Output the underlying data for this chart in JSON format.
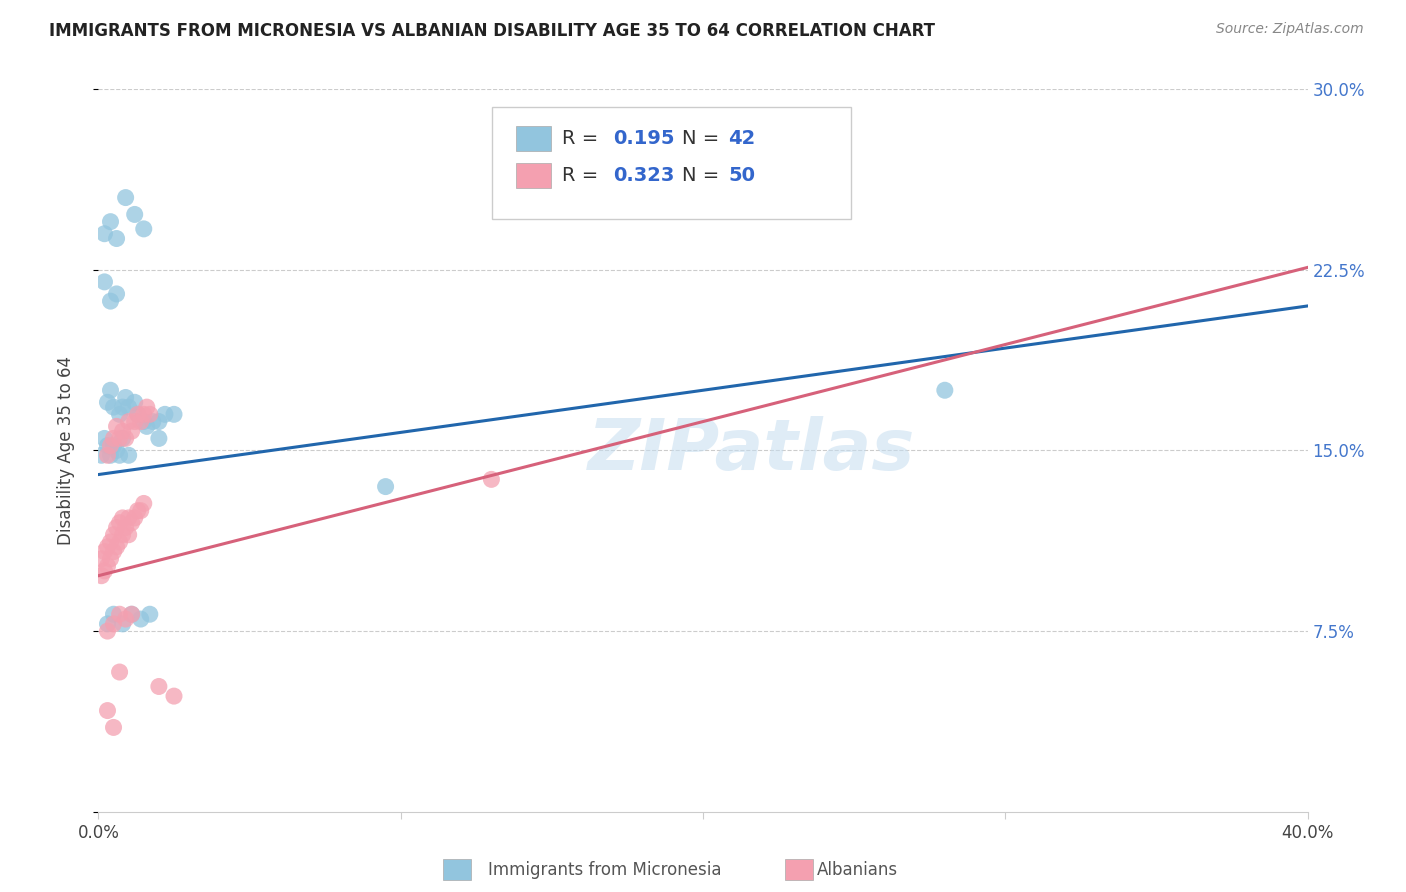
{
  "title": "IMMIGRANTS FROM MICRONESIA VS ALBANIAN DISABILITY AGE 35 TO 64 CORRELATION CHART",
  "source": "Source: ZipAtlas.com",
  "ylabel": "Disability Age 35 to 64",
  "xlim": [
    0.0,
    0.4
  ],
  "ylim": [
    0.0,
    0.3
  ],
  "watermark": "ZIPatlas",
  "r1": "0.195",
  "n1": "42",
  "r2": "0.323",
  "n2": "50",
  "blue_color": "#92c5de",
  "pink_color": "#f4a0b0",
  "blue_line_color": "#2166ac",
  "pink_line_color": "#d6617a",
  "micronesia_x": [
    0.001,
    0.002,
    0.003,
    0.004,
    0.005,
    0.006,
    0.007,
    0.008,
    0.003,
    0.004,
    0.005,
    0.007,
    0.008,
    0.009,
    0.01,
    0.012,
    0.013,
    0.015,
    0.016,
    0.018,
    0.02,
    0.022,
    0.025,
    0.002,
    0.004,
    0.006,
    0.009,
    0.012,
    0.015,
    0.003,
    0.005,
    0.008,
    0.011,
    0.014,
    0.017,
    0.002,
    0.004,
    0.006,
    0.095,
    0.28,
    0.01,
    0.02
  ],
  "micronesia_y": [
    0.148,
    0.155,
    0.152,
    0.148,
    0.152,
    0.15,
    0.148,
    0.155,
    0.17,
    0.175,
    0.168,
    0.165,
    0.168,
    0.172,
    0.168,
    0.17,
    0.165,
    0.162,
    0.16,
    0.162,
    0.162,
    0.165,
    0.165,
    0.24,
    0.245,
    0.238,
    0.255,
    0.248,
    0.242,
    0.078,
    0.082,
    0.078,
    0.082,
    0.08,
    0.082,
    0.22,
    0.212,
    0.215,
    0.135,
    0.175,
    0.148,
    0.155
  ],
  "albanian_x": [
    0.001,
    0.001,
    0.002,
    0.002,
    0.003,
    0.003,
    0.004,
    0.004,
    0.005,
    0.005,
    0.006,
    0.006,
    0.007,
    0.007,
    0.008,
    0.008,
    0.009,
    0.01,
    0.01,
    0.011,
    0.012,
    0.013,
    0.014,
    0.015,
    0.003,
    0.004,
    0.005,
    0.006,
    0.007,
    0.008,
    0.009,
    0.01,
    0.011,
    0.012,
    0.013,
    0.014,
    0.015,
    0.016,
    0.017,
    0.003,
    0.005,
    0.007,
    0.009,
    0.011,
    0.13,
    0.003,
    0.005,
    0.007,
    0.02,
    0.025
  ],
  "albanian_y": [
    0.098,
    0.105,
    0.1,
    0.108,
    0.102,
    0.11,
    0.105,
    0.112,
    0.108,
    0.115,
    0.11,
    0.118,
    0.112,
    0.12,
    0.115,
    0.122,
    0.118,
    0.115,
    0.122,
    0.12,
    0.122,
    0.125,
    0.125,
    0.128,
    0.148,
    0.152,
    0.155,
    0.16,
    0.155,
    0.158,
    0.155,
    0.162,
    0.158,
    0.162,
    0.165,
    0.162,
    0.165,
    0.168,
    0.165,
    0.075,
    0.078,
    0.082,
    0.08,
    0.082,
    0.138,
    0.042,
    0.035,
    0.058,
    0.052,
    0.048
  ]
}
